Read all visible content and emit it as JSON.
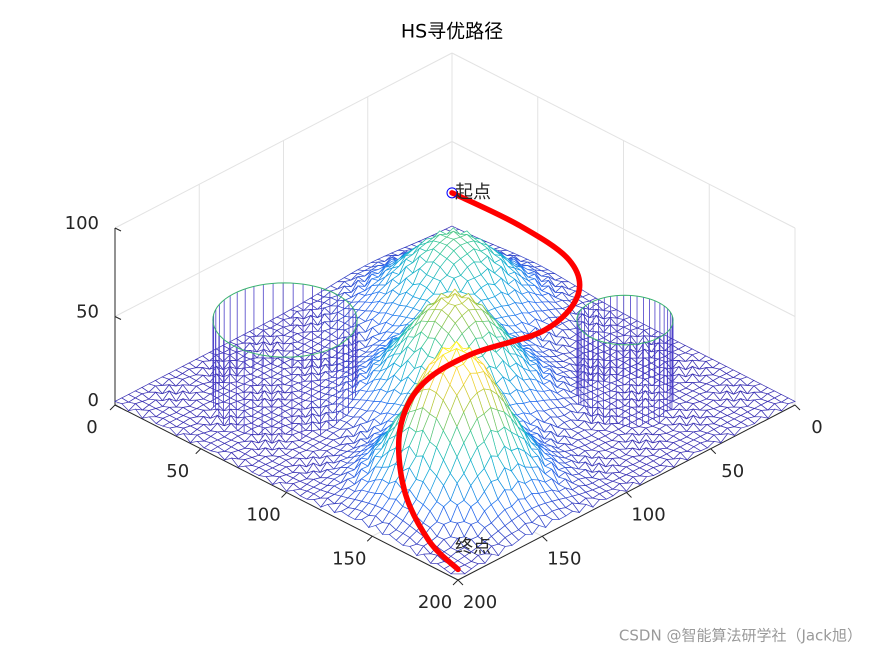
{
  "chart_data": {
    "type": "mesh3d",
    "title": "HS寻优路径",
    "xlim": [
      0,
      200
    ],
    "ylim": [
      0,
      200
    ],
    "zlim": [
      0,
      100
    ],
    "xticks": [
      0,
      50,
      100,
      150,
      200
    ],
    "yticks": [
      0,
      50,
      100,
      150,
      200
    ],
    "zticks": [
      0,
      50,
      100
    ],
    "grid": true,
    "colormap": "parula",
    "surface": {
      "peaks": [
        {
          "x": 50,
          "y": 50,
          "z": 44,
          "spread": 22
        },
        {
          "x": 100,
          "y": 100,
          "z": 59,
          "spread": 21
        },
        {
          "x": 150,
          "y": 150,
          "z": 80,
          "spread": 20
        }
      ],
      "noise": 4
    },
    "cylinders": [
      {
        "x": 50,
        "y": 150,
        "r": 30,
        "h": 48,
        "color": "#4b3fc8",
        "top_color": "#3cb371"
      },
      {
        "x": 150,
        "y": 50,
        "r": 20,
        "h": 48,
        "color": "#4b3fc8",
        "top_color": "#3cb371"
      }
    ],
    "path": {
      "color": "#ff0000",
      "x": [
        0,
        39,
        73.5,
        96,
        106,
        98,
        101,
        118,
        148,
        179,
        200
      ],
      "y": [
        0,
        0,
        5.3,
        23,
        53,
        89,
        121,
        151,
        179,
        196,
        200
      ],
      "z": [
        21,
        22,
        22,
        22,
        22,
        22,
        22,
        20,
        15,
        10,
        6
      ]
    },
    "start": {
      "label": "起点",
      "color": "#0000ff"
    },
    "end": {
      "label": "终点"
    },
    "watermark": "CSDN @智能算法研学社（Jack旭）"
  }
}
